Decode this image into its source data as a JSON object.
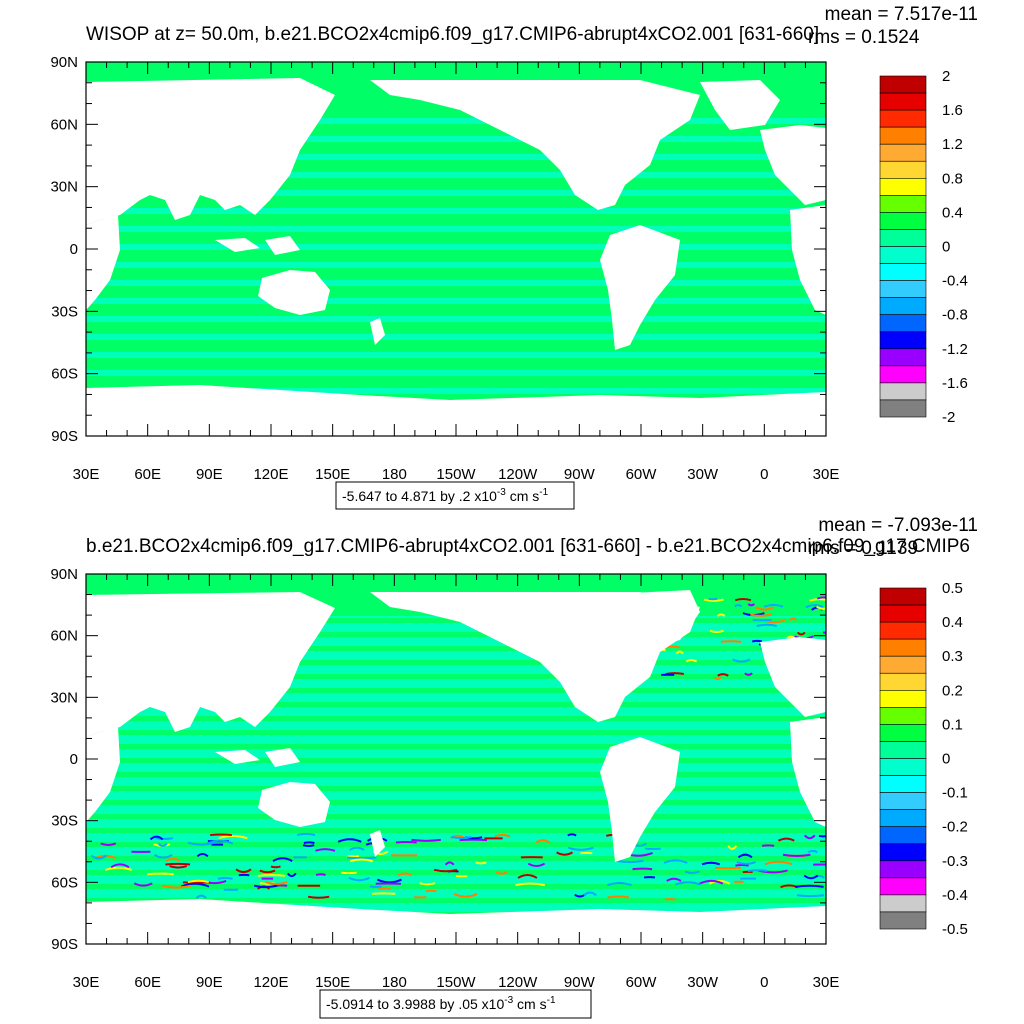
{
  "chart_data": [
    {
      "type": "heatmap",
      "title": "WISOP at z=  50.0m, b.e21.BCO2x4cmip6.f09_g17.CMIP6-abrupt4xCO2.001 [631-660]",
      "mean_text": "mean = 7.517e-11",
      "rms_text": "rms = 0.1524",
      "range_text_prefix": "-5.647 to 4.871 by .2 x10",
      "range_exponent": "-3",
      "range_units_prefix": "cm s",
      "range_units_exponent": "-1",
      "ylabels": [
        "90N",
        "60N",
        "30N",
        "0",
        "30S",
        "60S",
        "90S"
      ],
      "xlabels": [
        "30E",
        "60E",
        "90E",
        "120E",
        "150E",
        "180",
        "150W",
        "120W",
        "90W",
        "60W",
        "30W",
        "0",
        "30E"
      ],
      "colorbar_labels": [
        "2",
        "1.6",
        "1.2",
        "0.8",
        "0.4",
        "0",
        "-0.4",
        "-0.8",
        "-1.2",
        "-1.6",
        "-2"
      ],
      "colorbar_colors": [
        "#c00000",
        "#e60000",
        "#ff2a00",
        "#ff7f00",
        "#ffaa33",
        "#ffd733",
        "#ffff00",
        "#66ff00",
        "#00ff40",
        "#00ff99",
        "#00ffcc",
        "#00ffff",
        "#33ccff",
        "#00aaff",
        "#0066ff",
        "#0000ff",
        "#9900ff",
        "#ff00ff",
        "#cccccc",
        "#808080"
      ],
      "ocean_color": "#00ff66",
      "ocean_secondary": "#00ffbb",
      "land_color": "#ffffff"
    },
    {
      "type": "heatmap",
      "title": "b.e21.BCO2x4cmip6.f09_g17.CMIP6-abrupt4xCO2.001 [631-660] - b.e21.BCO2x4cmip6.f09_g17.CMIP6",
      "mean_text": "mean = -7.093e-11",
      "rms_text": "rms = 0.1139",
      "range_text_prefix": "-5.0914 to 3.9988 by .05 x10",
      "range_exponent": "-3",
      "range_units_prefix": "cm s",
      "range_units_exponent": "-1",
      "ylabels": [
        "90N",
        "60N",
        "30N",
        "0",
        "30S",
        "60S",
        "90S"
      ],
      "xlabels": [
        "30E",
        "60E",
        "90E",
        "120E",
        "150E",
        "180",
        "150W",
        "120W",
        "90W",
        "60W",
        "30W",
        "0",
        "30E"
      ],
      "colorbar_labels": [
        "0.5",
        "0.4",
        "0.3",
        "0.2",
        "0.1",
        "0",
        "-0.1",
        "-0.2",
        "-0.3",
        "-0.4",
        "-0.5"
      ],
      "colorbar_colors": [
        "#c00000",
        "#e60000",
        "#ff2a00",
        "#ff7f00",
        "#ffaa33",
        "#ffd733",
        "#ffff00",
        "#66ff00",
        "#00ff40",
        "#00ff99",
        "#00ffcc",
        "#00ffff",
        "#33ccff",
        "#00aaff",
        "#0066ff",
        "#0000ff",
        "#9900ff",
        "#ff00ff",
        "#cccccc",
        "#808080"
      ],
      "ocean_color": "#00ff66",
      "ocean_secondary": "#00ffbb",
      "land_color": "#ffffff"
    }
  ]
}
